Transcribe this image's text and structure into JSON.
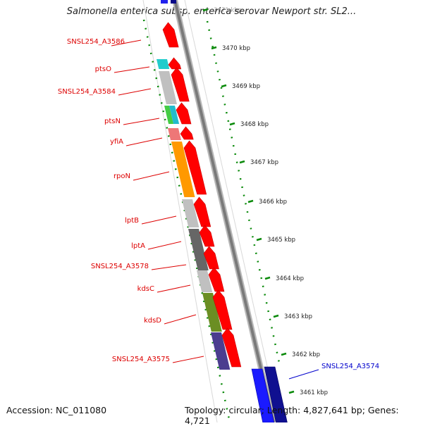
{
  "title": "Salmonella enterica subsp. enterica serovar Newport str. SL2...",
  "footer": {
    "accession": "Accession: NC_011080",
    "summary": "Topology: circular; Length: 4,827,641 bp; Genes: 4,721"
  },
  "colors": {
    "forward_gene": "#ff0000",
    "reverse_gene": "#0000ee",
    "backbone": "#888888",
    "dotted_ring": "#0a8a0a",
    "label_forward": "#dd0000",
    "label_reverse": "#0000cc"
  },
  "scale_ticks": [
    "3471 kbp",
    "3470 kbp",
    "3469 kbp",
    "3468 kbp",
    "3467 kbp",
    "3466 kbp",
    "3465 kbp",
    "3464 kbp",
    "3463 kbp",
    "3462 kbp",
    "3461 kbp"
  ],
  "gene_labels": [
    {
      "text": "SNSL254_A3586",
      "strand": "forward"
    },
    {
      "text": "ptsO",
      "strand": "forward"
    },
    {
      "text": "SNSL254_A3584",
      "strand": "forward"
    },
    {
      "text": "ptsN",
      "strand": "forward"
    },
    {
      "text": "yfiA",
      "strand": "forward"
    },
    {
      "text": "rpoN",
      "strand": "forward"
    },
    {
      "text": "lptB",
      "strand": "forward"
    },
    {
      "text": "lptA",
      "strand": "forward"
    },
    {
      "text": "SNSL254_A3578",
      "strand": "forward"
    },
    {
      "text": "kdsC",
      "strand": "forward"
    },
    {
      "text": "kdsD",
      "strand": "forward"
    },
    {
      "text": "SNSL254_A3575",
      "strand": "forward"
    },
    {
      "text": "SNSL254_A3574",
      "strand": "reverse"
    }
  ],
  "cog_blocks": [
    {
      "gene": "ptsO",
      "colors": [
        "#22cccc",
        "#22cccc"
      ]
    },
    {
      "gene": "SNSL254_A3584",
      "colors": [
        "#c0c0c0",
        "#c0c0c0"
      ]
    },
    {
      "gene": "ptsN",
      "colors": [
        "#44cc44",
        "#22bbcc"
      ]
    },
    {
      "gene": "yfiA",
      "colors": [
        "#ee7777",
        "#ee7777"
      ]
    },
    {
      "gene": "rpoN",
      "colors": [
        "#ff9900",
        "#ff9900"
      ]
    },
    {
      "gene": "lptB",
      "colors": [
        "#c0c0c0",
        "#c0c0c0"
      ]
    },
    {
      "gene": "lptA",
      "colors": [
        "#666666",
        "#666666"
      ]
    },
    {
      "gene": "SNSL254_A3578",
      "colors": [
        "#666666",
        "#666666"
      ]
    },
    {
      "gene": "kdsC",
      "colors": [
        "#c0c0c0",
        "#c0c0c0"
      ]
    },
    {
      "gene": "kdsD",
      "colors": [
        "#6b8e23",
        "#6b8e23"
      ]
    },
    {
      "gene": "SNSL254_A3575",
      "colors": [
        "#4b3d8f",
        "#4b3d8f"
      ]
    }
  ]
}
